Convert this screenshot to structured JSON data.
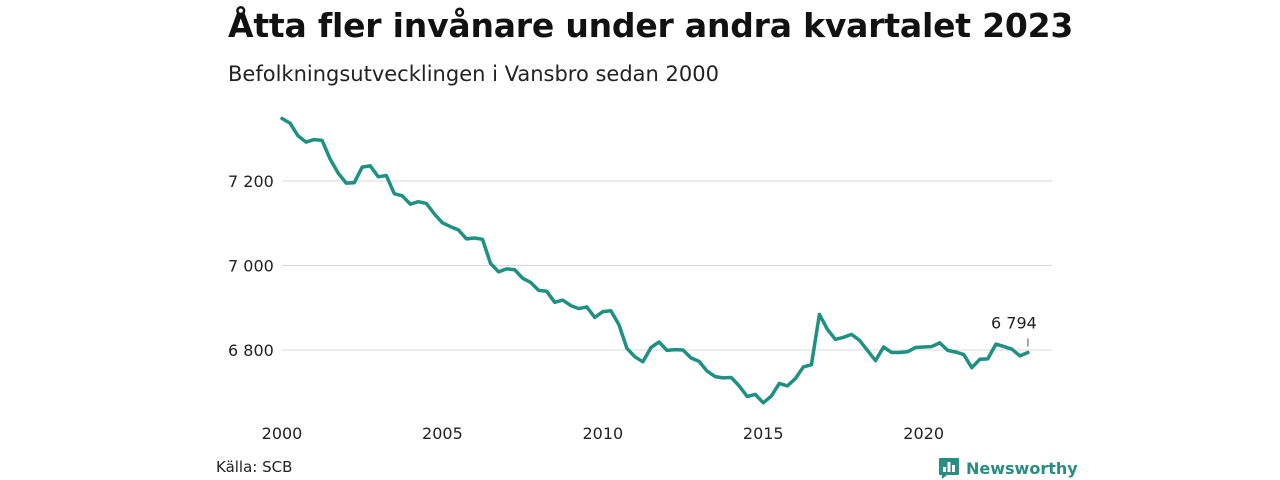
{
  "header": {
    "title": "Åtta fler invånare under andra kvartalet 2023",
    "subtitle": "Befolkningsutvecklingen i Vansbro sedan 2000"
  },
  "footer": {
    "source": "Källa: SCB",
    "brand": "Newsworthy",
    "brand_icon": "bar-chart-icon"
  },
  "colors": {
    "line": "#1f9182",
    "grid": "#d9d9d9",
    "brand": "#2b8c82"
  },
  "chart_data": {
    "type": "line",
    "title": "Åtta fler invånare under andra kvartalet 2023",
    "subtitle": "Befolkningsutvecklingen i Vansbro sedan 2000",
    "xlabel": "",
    "ylabel": "",
    "xlim": [
      2000,
      2024
    ],
    "ylim": [
      6750,
      7360
    ],
    "x_ticks": [
      2000,
      2005,
      2010,
      2015,
      2020
    ],
    "y_ticks": [
      {
        "value": 6800,
        "label": "6 800"
      },
      {
        "value": 7000,
        "label": "7 000"
      },
      {
        "value": 7200,
        "label": "7 200"
      }
    ],
    "grid": "horizontal",
    "x_quarters_start": "2000 Q1",
    "x_quarters_end": "2023 Q2",
    "values": [
      7348,
      7337,
      7307,
      7292,
      7298,
      7296,
      7252,
      7219,
      7195,
      7196,
      7233,
      7236,
      7210,
      7213,
      7170,
      7165,
      7145,
      7151,
      7147,
      7122,
      7101,
      7092,
      7084,
      7063,
      7065,
      7062,
      7005,
      6985,
      6992,
      6990,
      6970,
      6960,
      6941,
      6939,
      6913,
      6918,
      6905,
      6898,
      6902,
      6877,
      6891,
      6893,
      6860,
      6804,
      6784,
      6772,
      6806,
      6819,
      6799,
      6801,
      6800,
      6781,
      6773,
      6750,
      6737,
      6734,
      6735,
      6715,
      6690,
      6695,
      6675,
      6691,
      6721,
      6715,
      6732,
      6760,
      6765,
      6884,
      6849,
      6825,
      6830,
      6837,
      6823,
      6799,
      6775,
      6807,
      6794,
      6794,
      6796,
      6806,
      6807,
      6808,
      6817,
      6799,
      6795,
      6789,
      6758,
      6778,
      6779,
      6814,
      6808,
      6802,
      6786,
      6794
    ],
    "annotation": {
      "label": "6 794",
      "value": 6794
    }
  }
}
